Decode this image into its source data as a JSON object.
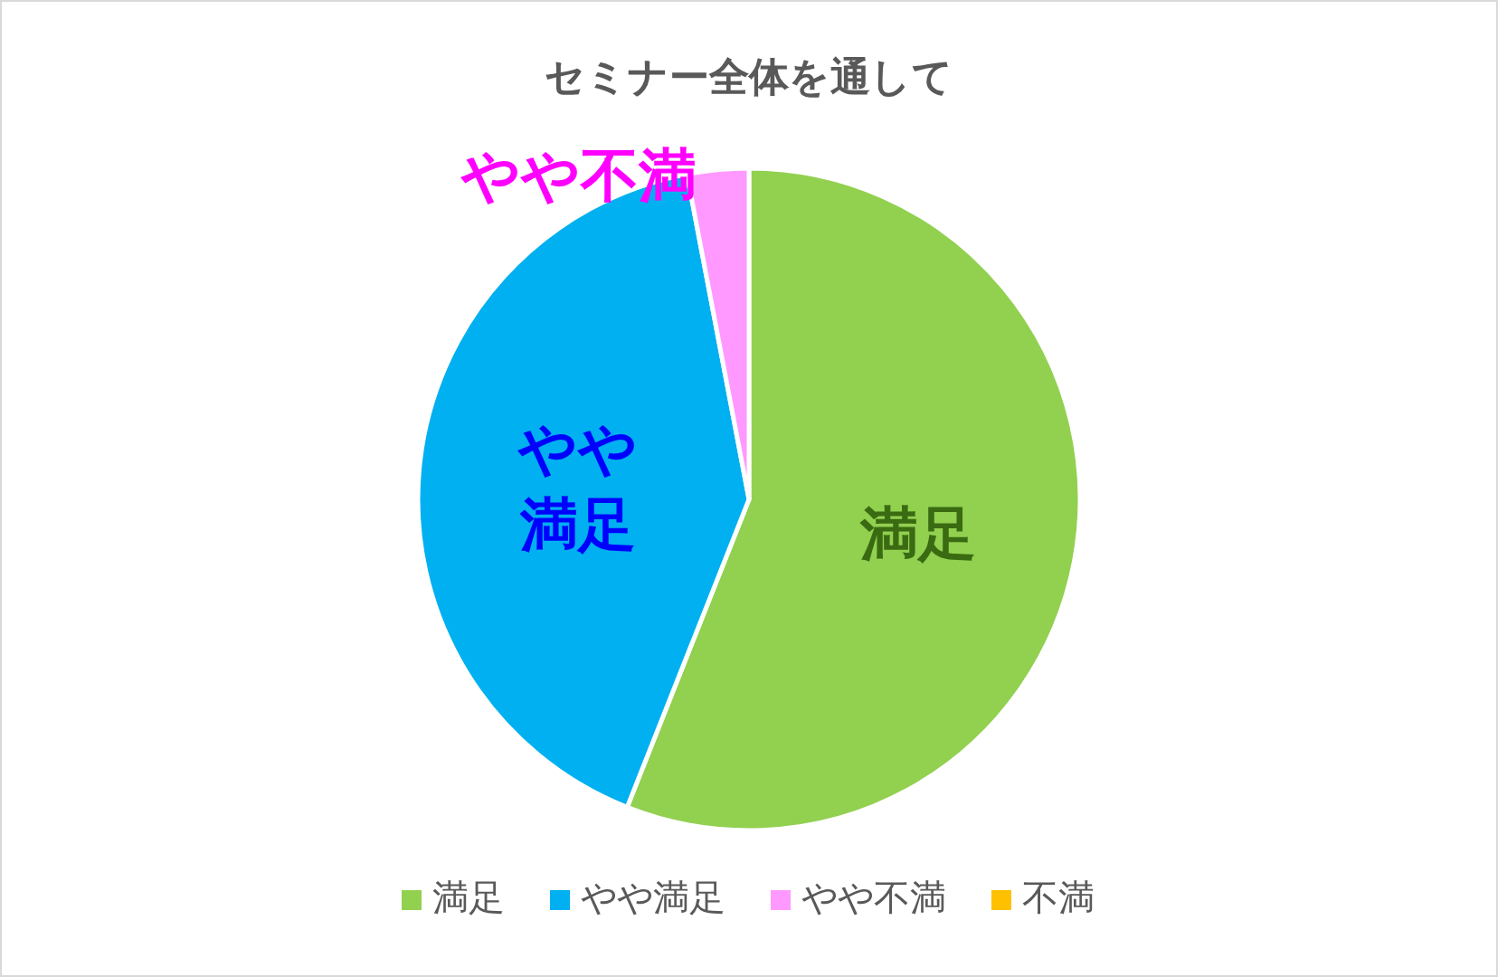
{
  "chart_data": {
    "type": "pie",
    "title": "セミナー全体を通して",
    "categories": [
      "満足",
      "やや満足",
      "やや不満",
      "不満"
    ],
    "values": [
      56,
      41,
      3,
      0
    ],
    "colors": [
      "#92d050",
      "#00b0f0",
      "#ff99ff",
      "#ffc000"
    ],
    "legend": "bottom"
  }
}
